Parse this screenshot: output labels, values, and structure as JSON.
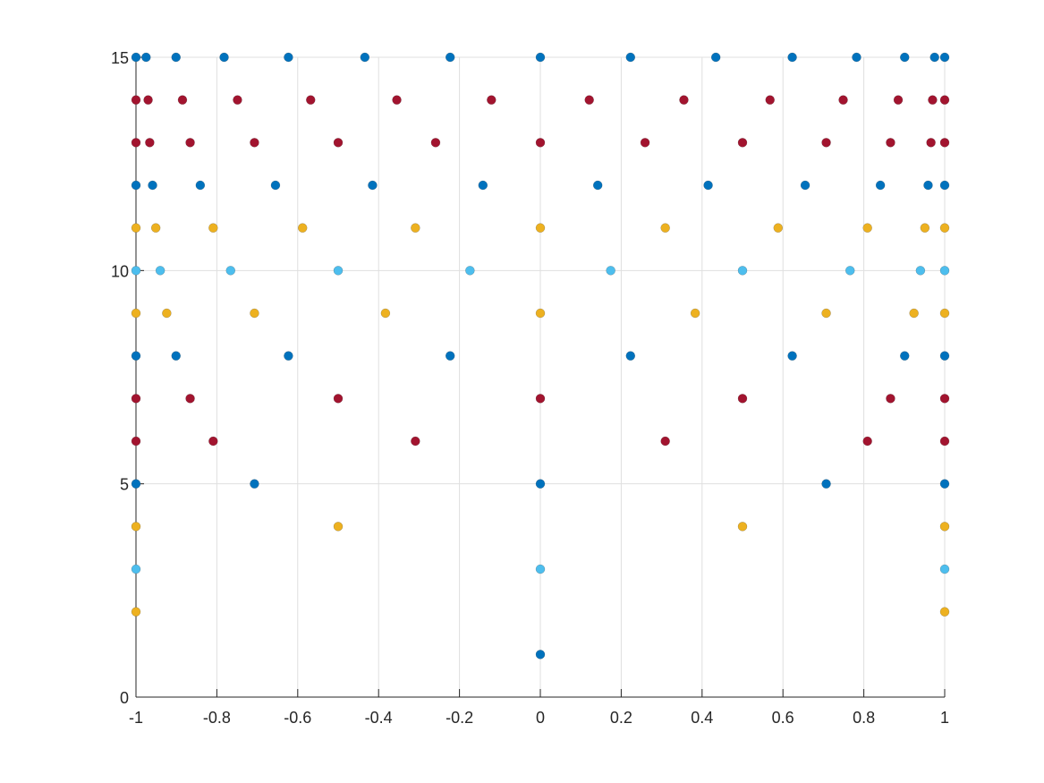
{
  "chart_data": {
    "type": "scatter",
    "title": "",
    "xlabel": "",
    "ylabel": "",
    "xlim": [
      -1,
      1
    ],
    "ylim": [
      0,
      15
    ],
    "grid": true,
    "x_ticks": [
      "-1",
      "-0.8",
      "-0.6",
      "-0.4",
      "-0.2",
      "0",
      "0.2",
      "0.4",
      "0.6",
      "0.8",
      "1"
    ],
    "y_ticks": [
      "0",
      "5",
      "10",
      "15"
    ],
    "colors": {
      "blue": "#0072bd",
      "red": "#a2142f",
      "yellow": "#edb120",
      "cyan": "#4dbeee",
      "grid": "#dfdfdf",
      "axis": "#262626"
    },
    "series": [
      {
        "color_key": "blue",
        "points": [
          [
            0,
            1
          ],
          [
            -1,
            5
          ],
          [
            -0.707,
            5
          ],
          [
            0,
            5
          ],
          [
            0.707,
            5
          ],
          [
            1,
            5
          ],
          [
            -1,
            8
          ],
          [
            -0.901,
            8
          ],
          [
            -0.623,
            8
          ],
          [
            -0.223,
            8
          ],
          [
            0.223,
            8
          ],
          [
            0.623,
            8
          ],
          [
            0.901,
            8
          ],
          [
            1,
            8
          ],
          [
            -1,
            12
          ],
          [
            -0.959,
            12
          ],
          [
            -0.841,
            12
          ],
          [
            -0.655,
            12
          ],
          [
            -0.415,
            12
          ],
          [
            -0.142,
            12
          ],
          [
            0.142,
            12
          ],
          [
            0.415,
            12
          ],
          [
            0.655,
            12
          ],
          [
            0.841,
            12
          ],
          [
            0.959,
            12
          ],
          [
            1,
            12
          ],
          [
            -1,
            15
          ],
          [
            -0.975,
            15
          ],
          [
            -0.901,
            15
          ],
          [
            -0.782,
            15
          ],
          [
            -0.623,
            15
          ],
          [
            -0.434,
            15
          ],
          [
            -0.223,
            15
          ],
          [
            0,
            15
          ],
          [
            0.223,
            15
          ],
          [
            0.434,
            15
          ],
          [
            0.623,
            15
          ],
          [
            0.782,
            15
          ],
          [
            0.901,
            15
          ],
          [
            0.975,
            15
          ],
          [
            1,
            15
          ]
        ]
      },
      {
        "color_key": "yellow",
        "points": [
          [
            -1,
            2
          ],
          [
            1,
            2
          ],
          [
            -1,
            4
          ],
          [
            -0.5,
            4
          ],
          [
            0.5,
            4
          ],
          [
            1,
            4
          ],
          [
            -1,
            9
          ],
          [
            -0.924,
            9
          ],
          [
            -0.707,
            9
          ],
          [
            -0.383,
            9
          ],
          [
            0,
            9
          ],
          [
            0.383,
            9
          ],
          [
            0.707,
            9
          ],
          [
            0.924,
            9
          ],
          [
            1,
            9
          ],
          [
            -1,
            11
          ],
          [
            -0.951,
            11
          ],
          [
            -0.809,
            11
          ],
          [
            -0.588,
            11
          ],
          [
            -0.309,
            11
          ],
          [
            0,
            11
          ],
          [
            0.309,
            11
          ],
          [
            0.588,
            11
          ],
          [
            0.809,
            11
          ],
          [
            0.951,
            11
          ],
          [
            1,
            11
          ]
        ]
      },
      {
        "color_key": "cyan",
        "points": [
          [
            -1,
            3
          ],
          [
            0,
            3
          ],
          [
            1,
            3
          ],
          [
            -1,
            10
          ],
          [
            -0.94,
            10
          ],
          [
            -0.766,
            10
          ],
          [
            -0.5,
            10
          ],
          [
            -0.174,
            10
          ],
          [
            0.174,
            10
          ],
          [
            0.5,
            10
          ],
          [
            0.766,
            10
          ],
          [
            0.94,
            10
          ],
          [
            1,
            10
          ]
        ]
      },
      {
        "color_key": "red",
        "points": [
          [
            -1,
            6
          ],
          [
            -0.809,
            6
          ],
          [
            -0.309,
            6
          ],
          [
            0.309,
            6
          ],
          [
            0.809,
            6
          ],
          [
            1,
            6
          ],
          [
            -1,
            7
          ],
          [
            -0.866,
            7
          ],
          [
            -0.5,
            7
          ],
          [
            0,
            7
          ],
          [
            0.5,
            7
          ],
          [
            0.866,
            7
          ],
          [
            1,
            7
          ],
          [
            -1,
            13
          ],
          [
            -0.966,
            13
          ],
          [
            -0.866,
            13
          ],
          [
            -0.707,
            13
          ],
          [
            -0.5,
            13
          ],
          [
            -0.259,
            13
          ],
          [
            0,
            13
          ],
          [
            0.259,
            13
          ],
          [
            0.5,
            13
          ],
          [
            0.707,
            13
          ],
          [
            0.866,
            13
          ],
          [
            0.966,
            13
          ],
          [
            1,
            13
          ],
          [
            -1,
            14
          ],
          [
            -0.97,
            14
          ],
          [
            -0.885,
            14
          ],
          [
            -0.749,
            14
          ],
          [
            -0.568,
            14
          ],
          [
            -0.355,
            14
          ],
          [
            -0.121,
            14
          ],
          [
            0.121,
            14
          ],
          [
            0.355,
            14
          ],
          [
            0.568,
            14
          ],
          [
            0.749,
            14
          ],
          [
            0.885,
            14
          ],
          [
            0.97,
            14
          ],
          [
            1,
            14
          ]
        ]
      }
    ]
  }
}
